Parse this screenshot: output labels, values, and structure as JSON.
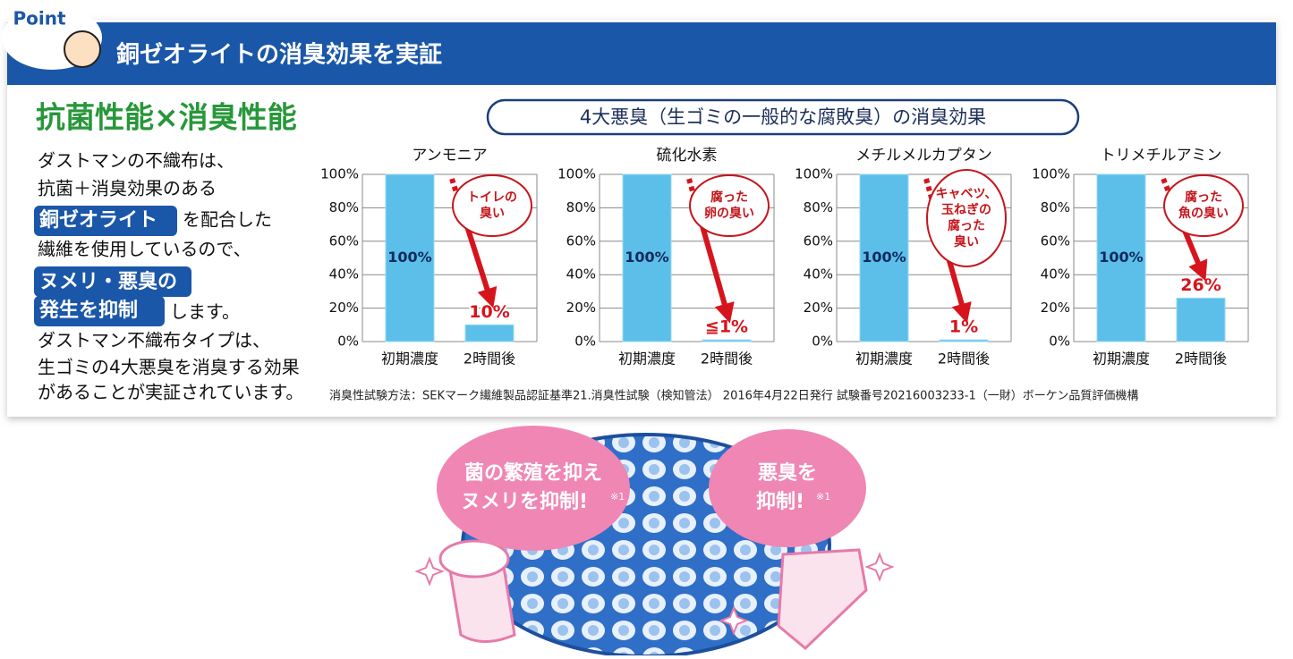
{
  "header": {
    "badge": "Point",
    "title": "銅ゼオライトの消臭効果を実証"
  },
  "left": {
    "heading": "抗菌性能×消臭性能",
    "lines": [
      [
        "ダストマンの不織布は、"
      ],
      [
        "抗菌＋消臭効果のある"
      ],
      [
        "銅ゼオライト",
        "を配合した"
      ],
      [
        "繊維を使用しているので、"
      ],
      [
        "ヌメリ・悪臭の"
      ],
      [
        "発生を抑制",
        "します。"
      ],
      [
        "ダストマン不織布タイプは、"
      ],
      [
        "生ゴミの4大悪臭を消臭する効果"
      ],
      [
        "があることが実証されています。"
      ]
    ]
  },
  "subtitle": "4大悪臭（生ゴミの一般的な腐敗臭）の消臭効果",
  "chart_data": [
    {
      "type": "bar",
      "title": "アンモニア",
      "categories": [
        "初期濃度",
        "2時間後"
      ],
      "values": [
        100,
        10
      ],
      "value_labels": [
        "100%",
        "10%"
      ],
      "color": "#5cbfea",
      "annotation": [
        "トイレの",
        "臭い"
      ],
      "ylim": [
        0,
        100
      ],
      "yticks": [
        {
          "value": 0,
          "label": "0%"
        },
        {
          "value": 20,
          "label": "20%"
        },
        {
          "value": 40,
          "label": "40%"
        },
        {
          "value": 60,
          "label": "60%"
        },
        {
          "value": 80,
          "label": "80%"
        },
        {
          "value": 100,
          "label": "100%"
        }
      ],
      "grid": true
    },
    {
      "type": "bar",
      "title": "硫化水素",
      "categories": [
        "初期濃度",
        "2時間後"
      ],
      "values": [
        100,
        1
      ],
      "value_labels": [
        "100%",
        "≦1%"
      ],
      "color": "#5cbfea",
      "annotation": [
        "腐った",
        "卵の臭い"
      ],
      "ylim": [
        0,
        100
      ],
      "yticks": [
        {
          "value": 0,
          "label": "0%"
        },
        {
          "value": 20,
          "label": "20%"
        },
        {
          "value": 40,
          "label": "40%"
        },
        {
          "value": 60,
          "label": "60%"
        },
        {
          "value": 80,
          "label": "80%"
        },
        {
          "value": 100,
          "label": "100%"
        }
      ],
      "grid": true
    },
    {
      "type": "bar",
      "title": "メチルメルカプタン",
      "categories": [
        "初期濃度",
        "2時間後"
      ],
      "values": [
        100,
        1
      ],
      "value_labels": [
        "100%",
        "1%"
      ],
      "color": "#5cbfea",
      "annotation": [
        "キャベツ、",
        "玉ねぎの",
        "腐った",
        "臭い"
      ],
      "ylim": [
        0,
        100
      ],
      "yticks": [
        {
          "value": 0,
          "label": "0%"
        },
        {
          "value": 20,
          "label": "20%"
        },
        {
          "value": 40,
          "label": "40%"
        },
        {
          "value": 60,
          "label": "60%"
        },
        {
          "value": 80,
          "label": "80%"
        },
        {
          "value": 100,
          "label": "100%"
        }
      ],
      "grid": true
    },
    {
      "type": "bar",
      "title": "トリメチルアミン",
      "categories": [
        "初期濃度",
        "2時間後"
      ],
      "values": [
        100,
        26
      ],
      "value_labels": [
        "100%",
        "26%"
      ],
      "color": "#5cbfea",
      "annotation": [
        "腐った",
        "魚の臭い"
      ],
      "ylim": [
        0,
        100
      ],
      "yticks": [
        {
          "value": 0,
          "label": "0%"
        },
        {
          "value": 20,
          "label": "20%"
        },
        {
          "value": 40,
          "label": "40%"
        },
        {
          "value": 60,
          "label": "60%"
        },
        {
          "value": 80,
          "label": "80%"
        },
        {
          "value": 100,
          "label": "100%"
        }
      ],
      "grid": true
    }
  ],
  "footnote": "消臭性試験方法：SEKマーク繊維製品認証基準21.消臭性試験（検知管法） 2016年4月22日発行 試験番号20216003233-1（一財）ボーケン品質評価機構",
  "bubbles": [
    {
      "lines": [
        "菌の繁殖を抑え",
        "ヌメリを抑制!"
      ],
      "note": "※1"
    },
    {
      "lines": [
        "悪臭を",
        "抑制!"
      ],
      "note": "※1"
    }
  ]
}
